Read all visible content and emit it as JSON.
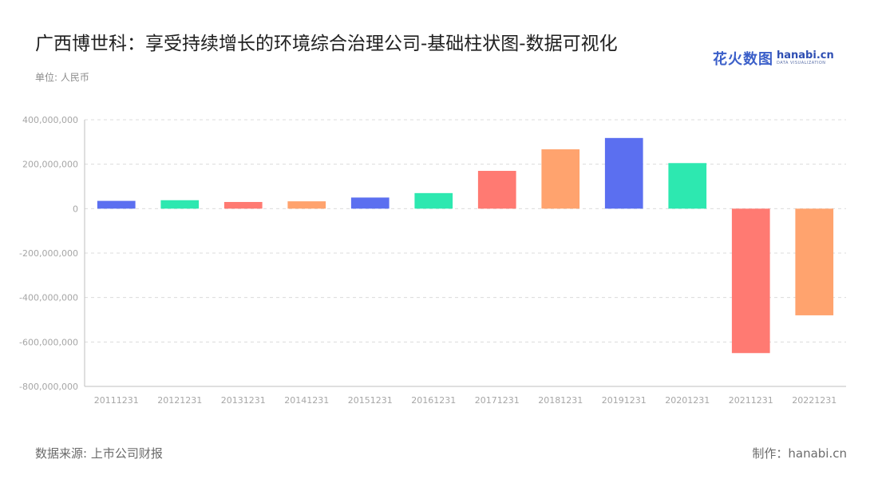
{
  "header": {
    "title": "广西博世科：享受持续增长的环境综合治理公司-基础柱状图-数据可视化",
    "unit": "单位: 人民币"
  },
  "logo": {
    "cn": "花火数图",
    "en": "hanabi.cn",
    "en_sub": "DATA VISUALIZATION"
  },
  "footer": {
    "source": "数据来源: 上市公司财报",
    "credit": "制作：hanabi.cn"
  },
  "colors": {
    "palette": [
      "#5b6ff0",
      "#2de8b0",
      "#ff7a72",
      "#ffa36e"
    ],
    "grid": "#dcdcdc",
    "axis": "#bfbfbf"
  },
  "chart_data": {
    "type": "bar",
    "categories": [
      "20111231",
      "20121231",
      "20131231",
      "20141231",
      "20151231",
      "20161231",
      "20171231",
      "20181231",
      "20191231",
      "20201231",
      "20211231",
      "20221231"
    ],
    "values": [
      35000000,
      38000000,
      30000000,
      33000000,
      50000000,
      70000000,
      170000000,
      267000000,
      318000000,
      205000000,
      -650000000,
      -480000000
    ],
    "yticks": [
      "400,000,000",
      "200,000,000",
      "0",
      "-200,000,000",
      "-400,000,000",
      "-600,000,000",
      "-800,000,000"
    ],
    "ylim": [
      -800000000,
      400000000
    ],
    "grid": true,
    "legend": "none"
  }
}
